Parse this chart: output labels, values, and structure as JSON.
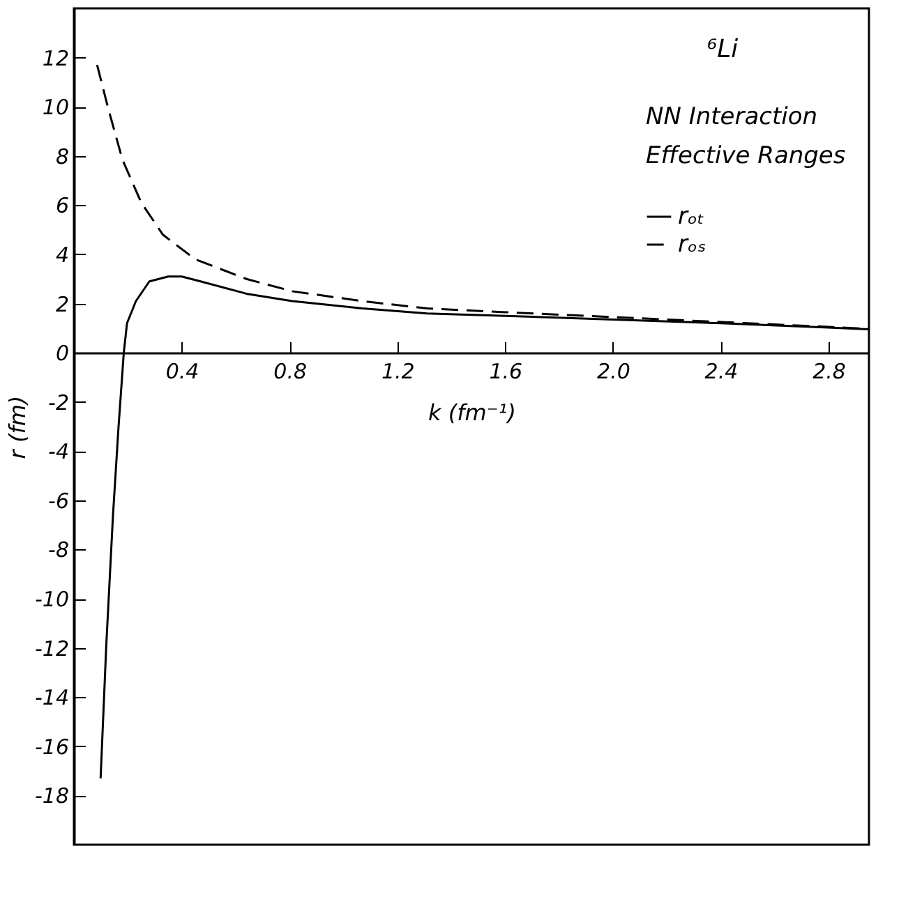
{
  "chart_data": {
    "type": "line",
    "xlabel": "k (fm⁻¹)",
    "ylabel": "r (fm)",
    "annotations": [
      "⁶Li",
      "NN Interaction",
      "Effective Ranges"
    ],
    "xlim": [
      0,
      2.95
    ],
    "ylim": [
      -20,
      14
    ],
    "xticks": [
      0.4,
      0.8,
      1.2,
      1.6,
      {
        "value": 2,
        "label": "2.0"
      },
      2.4,
      2.8
    ],
    "yticks": [
      -18,
      -16,
      -14,
      -12,
      -10,
      -8,
      -6,
      -4,
      -2,
      0,
      2,
      4,
      6,
      8,
      10,
      12
    ],
    "legend": "top right",
    "grid": false,
    "marker": "none",
    "series": [
      {
        "name": "rₒₜ",
        "color": "#000000",
        "line_style": "solid",
        "x": [
          0.099,
          0.12,
          0.145,
          0.165,
          0.185,
          0.197,
          0.23,
          0.28,
          0.35,
          0.4,
          0.47,
          0.64,
          0.81,
          1.07,
          1.31,
          1.6,
          2.0,
          2.4,
          2.8,
          2.95
        ],
        "values": [
          -17.3,
          -11.9,
          -6.6,
          -3.1,
          0,
          1.2,
          2.1,
          2.9,
          3.1,
          3.1,
          2.9,
          2.4,
          2.1,
          1.8,
          1.6,
          1.5,
          1.35,
          1.2,
          1.02,
          0.95
        ]
      },
      {
        "name": "rₒₛ",
        "color": "#000000",
        "line_style": "dashed",
        "x": [
          0.086,
          0.128,
          0.18,
          0.25,
          0.33,
          0.45,
          0.64,
          0.81,
          1.07,
          1.31,
          1.6,
          2.0,
          2.4,
          2.8,
          2.95
        ],
        "values": [
          11.7,
          9.9,
          7.85,
          6.1,
          4.8,
          3.8,
          3.0,
          2.5,
          2.1,
          1.8,
          1.65,
          1.45,
          1.25,
          1.05,
          0.97
        ]
      }
    ]
  }
}
